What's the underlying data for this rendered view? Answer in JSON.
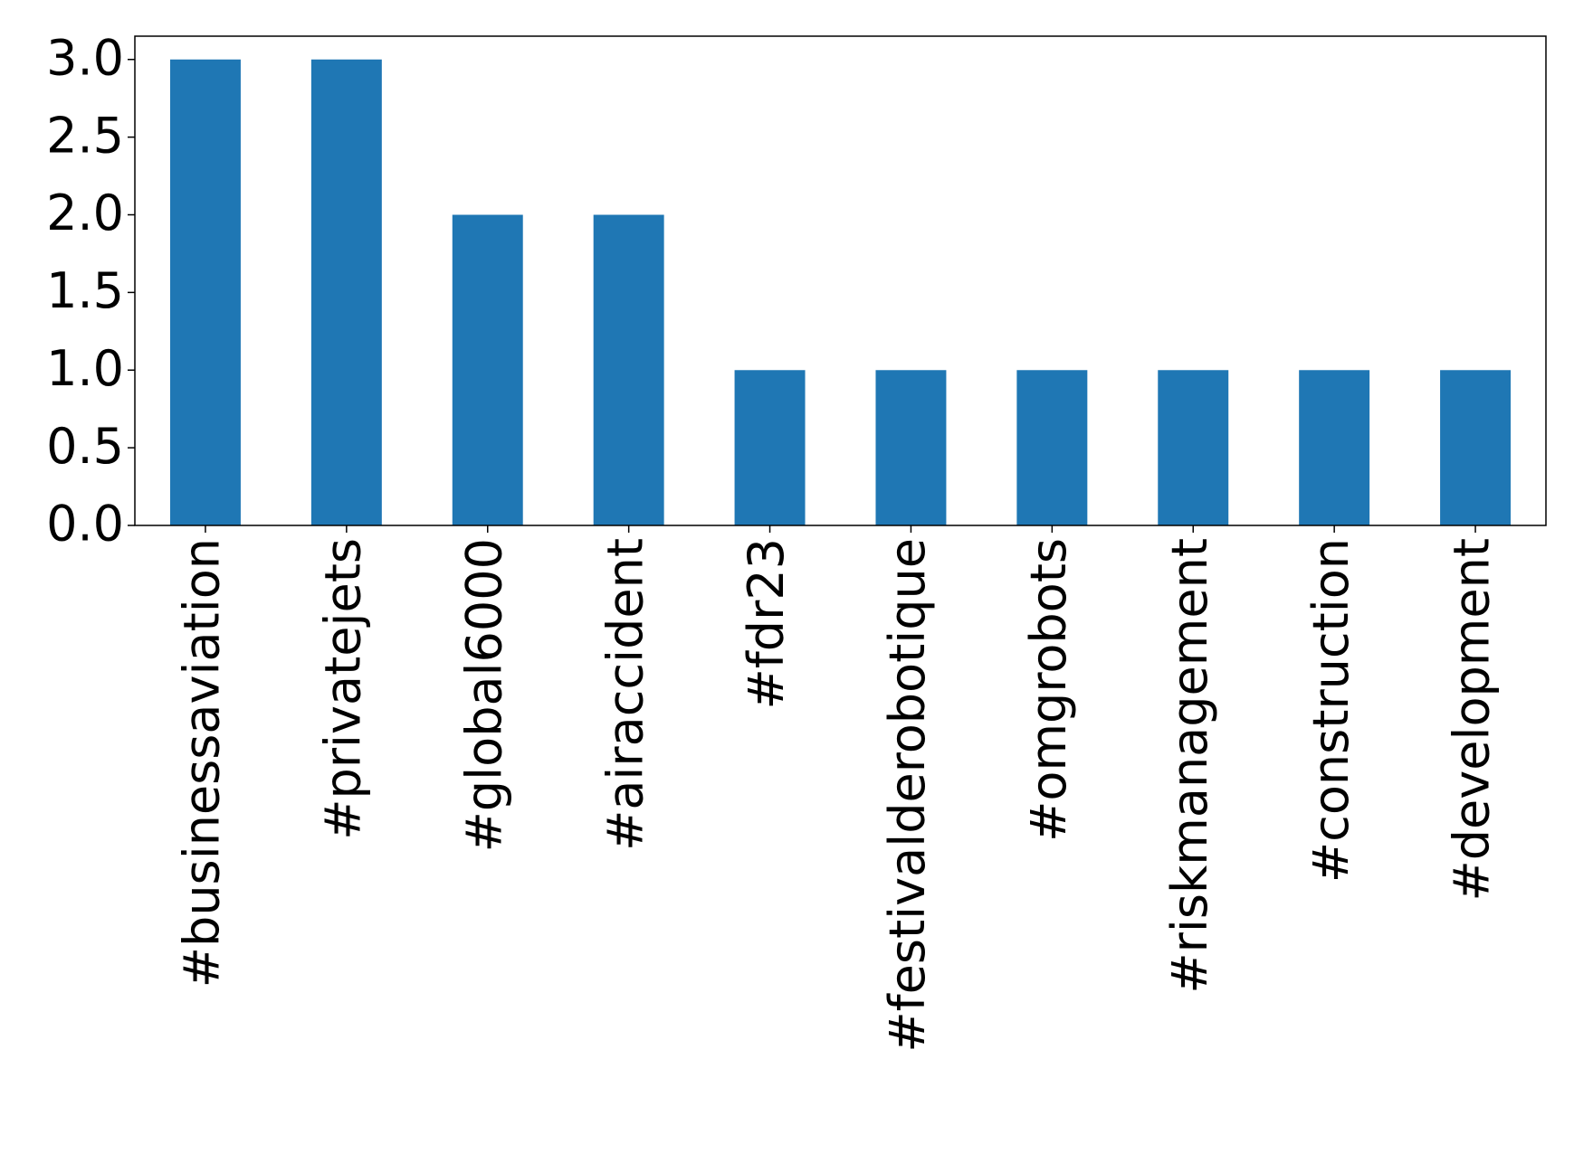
{
  "chart_data": {
    "type": "bar",
    "categories": [
      "#businessaviation",
      "#privatejets",
      "#global6000",
      "#airaccident",
      "#fdr23",
      "#festivalderobotique",
      "#omgrobots",
      "#riskmanagement",
      "#construction",
      "#development"
    ],
    "values": [
      3,
      3,
      2,
      2,
      1,
      1,
      1,
      1,
      1,
      1
    ],
    "color": "#1f77b4",
    "ylim": [
      0,
      3.15
    ],
    "yticks": [
      {
        "value": 0,
        "label": "0.0"
      },
      0.5,
      {
        "value": 1,
        "label": "1.0"
      },
      1.5,
      {
        "value": 2,
        "label": "2.0"
      },
      2.5,
      {
        "value": 3,
        "label": "3.0"
      }
    ],
    "grid": false
  }
}
